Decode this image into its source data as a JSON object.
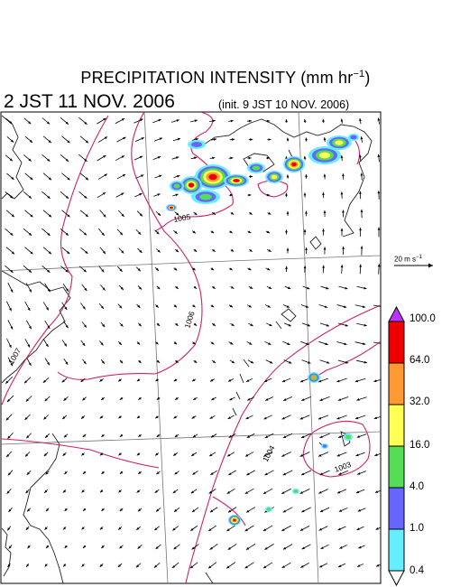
{
  "title": {
    "main": "PRECIPITATION INTENSITY (mm hr",
    "main_sup": "−1",
    "main_close": ")",
    "valid_time": "2 JST 11 NOV. 2006",
    "init_time": "(init. 9 JST 10 NOV. 2006)"
  },
  "reference_vector": {
    "label": "20 m s",
    "label_sup": "−1"
  },
  "colorbar": {
    "levels": [
      "100.0",
      "64.0",
      "32.0",
      "16.0",
      "4.0",
      "1.0",
      "0.4"
    ],
    "colors": [
      "#ee0000",
      "#ff9933",
      "#ffff55",
      "#55dd55",
      "#6666ff",
      "#66eeff"
    ],
    "over_color": "#bb33ff",
    "under_color": "#ffffff"
  },
  "isobars": {
    "color": "#d0206a",
    "labels": [
      "1005",
      "1006",
      "1007",
      "1004",
      "1003"
    ]
  },
  "colors": {
    "coastline": "#222222",
    "grid": "#777777",
    "arrow": "#000000"
  }
}
